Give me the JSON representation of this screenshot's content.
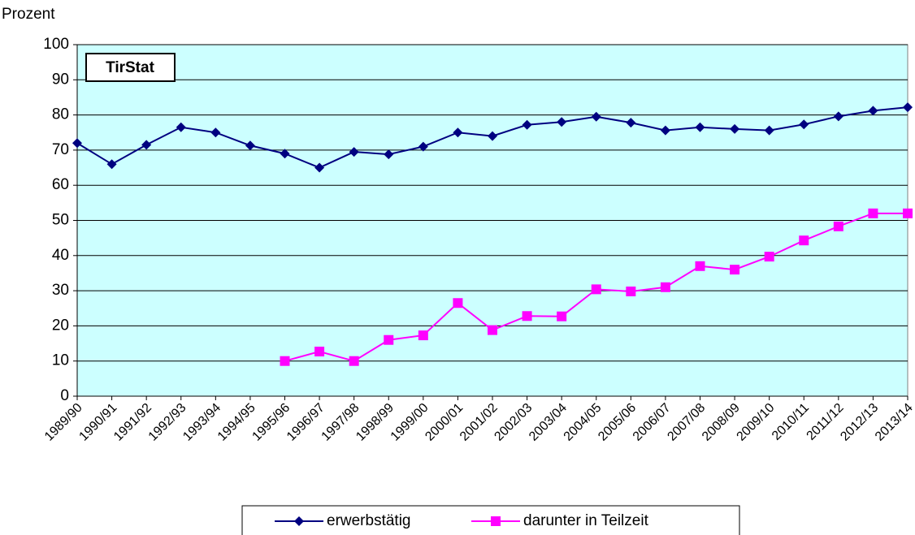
{
  "chart_data": {
    "type": "line",
    "y_label": "Prozent",
    "annotation": "TirStat",
    "categories": [
      "1989/90",
      "1990/91",
      "1991/92",
      "1992/93",
      "1993/94",
      "1994/95",
      "1995/96",
      "1996/97",
      "1997/98",
      "1998/99",
      "1999/00",
      "2000/01",
      "2001/02",
      "2002/03",
      "2003/04",
      "2004/05",
      "2005/06",
      "2006/07",
      "2007/08",
      "2008/09",
      "2009/10",
      "2010/11",
      "2011/12",
      "2012/13",
      "2013/14"
    ],
    "series": [
      {
        "name": "erwerbstätig",
        "color": "#000080",
        "marker": "diamond",
        "values": [
          72,
          66,
          71.5,
          76.5,
          75,
          71.3,
          69,
          65,
          69.5,
          68.8,
          71,
          75,
          74,
          77.2,
          78,
          79.5,
          77.8,
          75.6,
          76.5,
          76,
          75.6,
          77.3,
          79.6,
          81.2,
          82.2
        ]
      },
      {
        "name": "darunter in Teilzeit",
        "color": "#ff00ff",
        "marker": "square",
        "values": [
          null,
          null,
          null,
          null,
          null,
          null,
          10,
          12.7,
          10,
          16,
          17.3,
          26.5,
          18.8,
          22.8,
          22.7,
          30.4,
          29.8,
          31,
          37,
          36,
          39.7,
          44.3,
          48.3,
          52,
          52
        ]
      }
    ],
    "ylim": [
      0,
      100
    ],
    "yticks": [
      0,
      10,
      20,
      30,
      40,
      50,
      60,
      70,
      80,
      90,
      100
    ],
    "grid": true,
    "plot_background": "#ccffff",
    "legend": "bottom"
  }
}
